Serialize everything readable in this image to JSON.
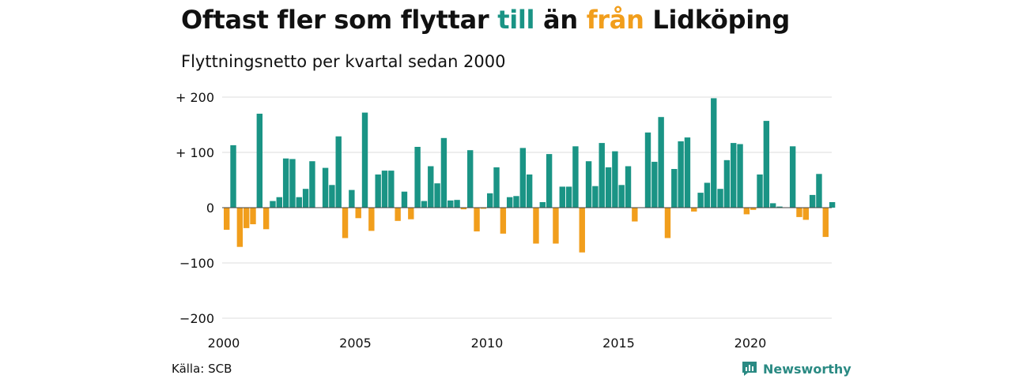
{
  "header": {
    "title_parts": [
      {
        "text": "Oftast fler som flyttar ",
        "color": "#111111"
      },
      {
        "text": "till",
        "color": "#1a9485"
      },
      {
        "text": " än ",
        "color": "#111111"
      },
      {
        "text": "från",
        "color": "#f19e1c"
      },
      {
        "text": " Lidköping",
        "color": "#111111"
      }
    ],
    "subtitle": "Flyttningsnetto per kvartal sedan 2000"
  },
  "footer": {
    "source": "Källa: SCB",
    "brand": "Newsworthy",
    "brand_icon": "newsworthy-chart-icon"
  },
  "colors": {
    "positive": "#1a9485",
    "negative": "#f19e1c",
    "grid": "#dddddd",
    "zero_line": "#444444"
  },
  "chart_data": {
    "type": "bar",
    "title": "",
    "xlabel": "",
    "ylabel": "",
    "ylim": [
      -200,
      200
    ],
    "y_ticks": [
      {
        "value": 200,
        "label": "+ 200"
      },
      {
        "value": 100,
        "label": "+ 100"
      },
      {
        "value": 0,
        "label": "0"
      },
      {
        "value": -100,
        "label": "−100"
      },
      {
        "value": -200,
        "label": "−200"
      }
    ],
    "x_ticks": [
      {
        "value": 2000,
        "label": "2000"
      },
      {
        "value": 2005,
        "label": "2005"
      },
      {
        "value": 2010,
        "label": "2010"
      },
      {
        "value": 2015,
        "label": "2015"
      },
      {
        "value": 2020,
        "label": "2020"
      }
    ],
    "grid": true,
    "legend": "none",
    "series": [
      {
        "start_year": 2000,
        "periods_per_year": 4,
        "values": [
          -40,
          113,
          -71,
          -37,
          -30,
          170,
          -39,
          12,
          19,
          89,
          88,
          19,
          34,
          84,
          0,
          72,
          41,
          129,
          -55,
          32,
          -19,
          172,
          -42,
          60,
          67,
          67,
          -24,
          29,
          -21,
          110,
          12,
          75,
          44,
          126,
          13,
          14,
          -3,
          104,
          -43,
          -2,
          26,
          73,
          -47,
          19,
          21,
          108,
          60,
          -65,
          10,
          97,
          -65,
          38,
          38,
          111,
          -81,
          84,
          39,
          117,
          73,
          102,
          41,
          75,
          -25,
          0,
          136,
          83,
          164,
          -55,
          70,
          120,
          127,
          -7,
          27,
          45,
          198,
          34,
          86,
          117,
          115,
          -12,
          -4,
          60,
          157,
          8,
          2,
          0,
          111,
          -17,
          -22,
          23,
          61,
          -53,
          10
        ]
      }
    ]
  }
}
